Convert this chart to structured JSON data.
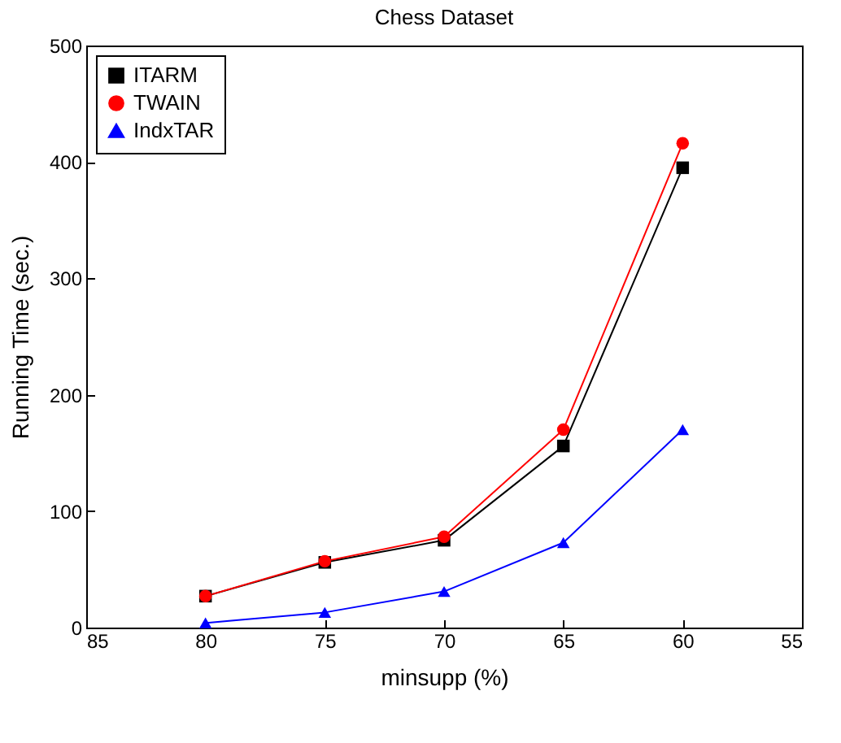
{
  "chart_data": {
    "type": "line",
    "title": "Chess Dataset",
    "xlabel": "minsupp (%)",
    "ylabel": "Running Time (sec.)",
    "x": [
      80,
      75,
      70,
      65,
      60
    ],
    "xlim": [
      85,
      55
    ],
    "xticks": [
      85,
      80,
      75,
      70,
      65,
      60,
      55
    ],
    "ylim": [
      0,
      500
    ],
    "yticks": [
      0,
      100,
      200,
      300,
      400,
      500
    ],
    "legend": "top left",
    "grid": false,
    "line_style": "solid",
    "series": [
      {
        "name": "ITARM",
        "color": "#000000",
        "marker": "square",
        "values": [
          27,
          56,
          75,
          156,
          395
        ]
      },
      {
        "name": "TWAIN",
        "color": "#ff0000",
        "marker": "circle",
        "values": [
          27,
          57,
          78,
          170,
          416
        ]
      },
      {
        "name": "IndxTAR",
        "color": "#0000ff",
        "marker": "triangle",
        "values": [
          4,
          13,
          31,
          73,
          170
        ]
      }
    ]
  }
}
